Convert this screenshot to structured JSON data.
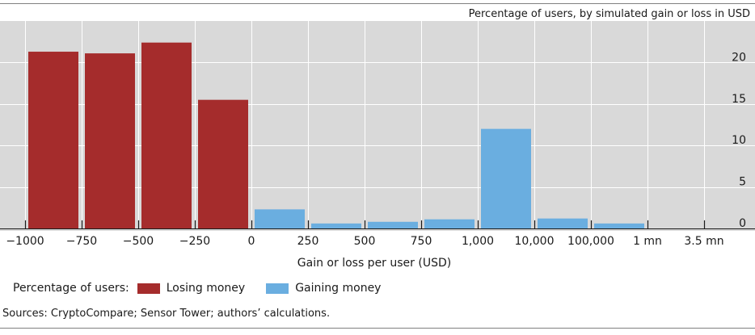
{
  "chart_data": {
    "type": "bar",
    "subtitle": "Percentage of users, by simulated gain or loss in USD",
    "xlabel": "Gain or loss per user (USD)",
    "ylabel": "",
    "ylim": [
      0,
      25
    ],
    "yticks": [
      0,
      5,
      10,
      15,
      20
    ],
    "ytick_labels": [
      "0",
      "5",
      "10",
      "15",
      "20"
    ],
    "y_axis_side": "right",
    "grid": true,
    "x_tick_labels": [
      "−1000",
      "−750",
      "−500",
      "−250",
      "0",
      "250",
      "500",
      "750",
      "1,000",
      "10,000",
      "100,000",
      "1 mn",
      "3.5 mn"
    ],
    "bins": [
      {
        "from": "−1000",
        "to": "−750",
        "value": 21.3,
        "series": "Losing money"
      },
      {
        "from": "−750",
        "to": "−500",
        "value": 21.1,
        "series": "Losing money"
      },
      {
        "from": "−500",
        "to": "−250",
        "value": 22.4,
        "series": "Losing money"
      },
      {
        "from": "−250",
        "to": "0",
        "value": 15.5,
        "series": "Losing money"
      },
      {
        "from": "0",
        "to": "250",
        "value": 2.3,
        "series": "Gaining money"
      },
      {
        "from": "250",
        "to": "500",
        "value": 0.6,
        "series": "Gaining money"
      },
      {
        "from": "500",
        "to": "750",
        "value": 0.8,
        "series": "Gaining money"
      },
      {
        "from": "750",
        "to": "1,000",
        "value": 1.1,
        "series": "Gaining money"
      },
      {
        "from": "1,000",
        "to": "10,000",
        "value": 12.0,
        "series": "Gaining money"
      },
      {
        "from": "10,000",
        "to": "100,000",
        "value": 1.2,
        "series": "Gaining money"
      },
      {
        "from": "100,000",
        "to": "1 mn",
        "value": 0.6,
        "series": "Gaining money"
      },
      {
        "from": "1 mn",
        "to": "3.5 mn",
        "value": 0.0,
        "series": "Gaining money"
      }
    ],
    "legend": {
      "title": "Percentage of users:",
      "position": "bottom-left",
      "entries": [
        {
          "name": "Losing money",
          "color": "#a52c2c"
        },
        {
          "name": "Gaining money",
          "color": "#6aaee0"
        }
      ]
    }
  },
  "source_note": "Sources: CryptoCompare; Sensor Tower; authors’ calculations.",
  "colors": {
    "plot_background": "#d9d9d9",
    "grid": "#ffffff",
    "losing": "#a52c2c",
    "gaining": "#6aaee0",
    "text": "#1a1a1a",
    "subtitle": "#707070"
  }
}
